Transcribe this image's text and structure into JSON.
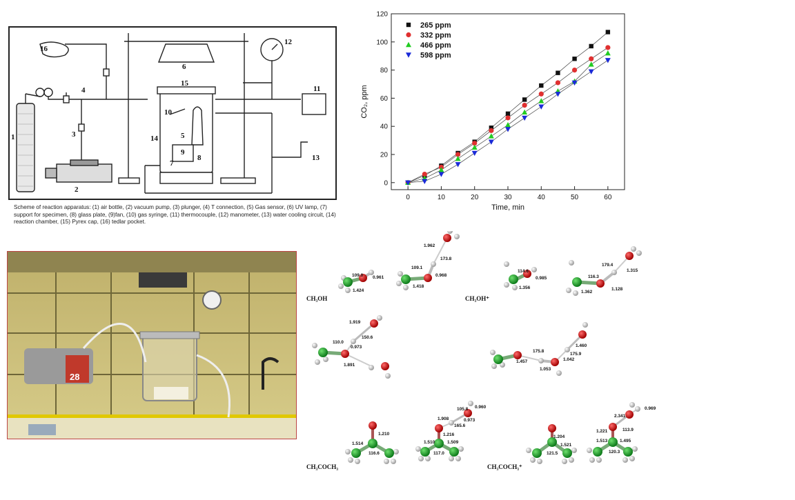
{
  "scheme": {
    "numbers": [
      "1",
      "2",
      "3",
      "4",
      "5",
      "6",
      "7",
      "8",
      "9",
      "10",
      "11",
      "12",
      "13",
      "14",
      "15",
      "16"
    ],
    "caption": "Scheme of reaction apparatus: (1) air bottle, (2) vacuum pump, (3) plunger, (4) T connection, (5) Gas sensor, (6) UV lamp, (7) support for specimen, (8) glass plate, (9)fan, (10) gas syringe, (11) thermocouple, (12) manometer, (13) water cooling circuit, (14) reaction chamber, (15) Pyrex cap, (16) tedlar pocket."
  },
  "photo": {
    "pump_label": "28"
  },
  "chart_data": {
    "type": "line",
    "xlabel": "Time, min",
    "ylabel": "CO₂, ppm",
    "xlim": [
      -5,
      65
    ],
    "ylim": [
      -5,
      120
    ],
    "xticks": [
      0,
      10,
      20,
      30,
      40,
      50,
      60
    ],
    "yticks": [
      0,
      20,
      40,
      60,
      80,
      100,
      120
    ],
    "grid": false,
    "legend_position": "top-left",
    "x": [
      0,
      5,
      10,
      15,
      20,
      25,
      30,
      35,
      40,
      45,
      50,
      55,
      60
    ],
    "series": [
      {
        "name": "265 ppm",
        "marker": "square",
        "color": "#111111",
        "values": [
          0,
          5,
          12,
          21,
          29,
          39,
          49,
          59,
          69,
          78,
          88,
          97,
          107
        ]
      },
      {
        "name": "332 ppm",
        "marker": "circle",
        "color": "#e03030",
        "values": [
          0,
          6,
          11,
          20,
          28,
          37,
          46,
          55,
          63,
          71,
          80,
          88,
          96
        ]
      },
      {
        "name": "466 ppm",
        "marker": "triangle-up",
        "color": "#22cc22",
        "values": [
          0,
          3,
          9,
          17,
          25,
          33,
          41,
          50,
          58,
          65,
          72,
          84,
          92
        ]
      },
      {
        "name": "598 ppm",
        "marker": "triangle-down",
        "color": "#1a2ad8",
        "values": [
          0,
          1,
          6,
          13,
          21,
          29,
          38,
          46,
          54,
          63,
          71,
          79,
          87
        ]
      }
    ]
  },
  "molecules": {
    "captions": {
      "ch3oh": "CH₃OH",
      "ch3oh_plus": "CH₃OH⁺",
      "acetone": "CH₃COCH₃",
      "acetone_plus": "CH₃COCH₃⁺"
    },
    "bond_labels": {
      "m1": [
        "109.0",
        "0.961",
        "1.424"
      ],
      "m2": [
        "1.962",
        "173.8",
        "109.1",
        "0.968",
        "1.418"
      ],
      "m3": [
        "114.6",
        "0.985",
        "1.356"
      ],
      "m4": [
        "179.4",
        "1.315",
        "116.3",
        "1.362",
        "1.128"
      ],
      "m5": [
        "1.919",
        "150.6",
        "110.0",
        "0.973",
        "1.891"
      ],
      "m6": [
        "1.460",
        "175.8",
        "175.9",
        "1.457",
        "1.042",
        "1.053"
      ],
      "m7": [
        "1.210",
        "1.514",
        "116.6"
      ],
      "m8": [
        "0.960",
        "105.8",
        "1.908",
        "0.973",
        "165.6",
        "1.216",
        "1.510",
        "1.509",
        "117.0"
      ],
      "m9": [
        "1.204",
        "1.521",
        "121.5"
      ],
      "m10": [
        "0.969",
        "2.341",
        "1.221",
        "113.9",
        "1.513",
        "1.495",
        "120.3"
      ]
    }
  }
}
